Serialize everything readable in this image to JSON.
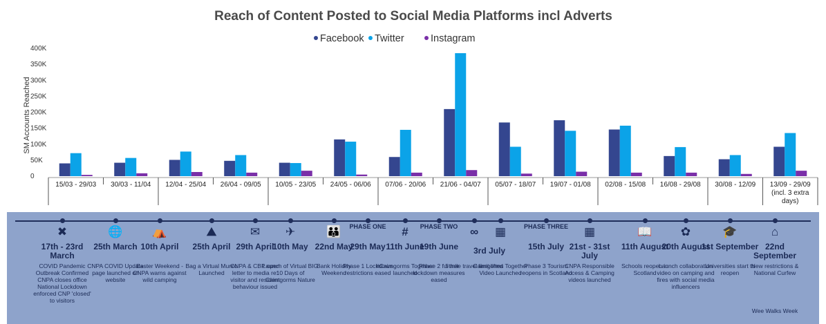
{
  "chart_data": {
    "type": "bar",
    "title": "Reach of Content Posted to Social Media Platforms incl Adverts",
    "ylabel": "SM Accounts Reached",
    "ylim": [
      0,
      400000
    ],
    "yticks": [
      0,
      50000,
      100000,
      150000,
      200000,
      250000,
      300000,
      350000,
      400000
    ],
    "ytick_labels": [
      "0",
      "50K",
      "100K",
      "150K",
      "200K",
      "250K",
      "300K",
      "350K",
      "400K"
    ],
    "legend_position": "top-center",
    "categories": [
      [
        "15/03 - 29/03"
      ],
      [
        "30/03 - 11/04"
      ],
      [
        "12/04 - 25/04"
      ],
      [
        "26/04 - 09/05"
      ],
      [
        "10/05 - 23/05"
      ],
      [
        "24/05 - 06/06"
      ],
      [
        "07/06 - 20/06"
      ],
      [
        "21/06 - 04/07"
      ],
      [
        "05/07 - 18/07"
      ],
      [
        "19/07 - 01/08"
      ],
      [
        "02/08 - 15/08"
      ],
      [
        "16/08 - 29/08"
      ],
      [
        "30/08 - 12/09"
      ],
      [
        "13/09 - 29/09",
        "(incl. 3 extra",
        "days)"
      ]
    ],
    "series": [
      {
        "name": "Facebook",
        "color": "#34468f",
        "values": [
          40000,
          42000,
          51000,
          48000,
          42000,
          115000,
          60000,
          210000,
          168000,
          175000,
          146000,
          63000,
          53000,
          92000
        ]
      },
      {
        "name": "Twitter",
        "color": "#0ba3e8",
        "values": [
          72000,
          57000,
          77000,
          66000,
          41000,
          108000,
          145000,
          385000,
          92000,
          142000,
          158000,
          91000,
          66000,
          135000
        ]
      },
      {
        "name": "Instagram",
        "color": "#7a2fa8",
        "values": [
          4000,
          9000,
          13000,
          11000,
          17000,
          5000,
          11000,
          19000,
          8000,
          14000,
          11000,
          11000,
          7000,
          17000
        ]
      }
    ]
  },
  "timeline": {
    "events": [
      {
        "icon": "✖",
        "icon_name": "closed-box-icon",
        "phase": "",
        "date": "17th - 23rd March",
        "desc": "COVID Pandemic Outbreak Confirmed CNPA closes office National Lockdown enforced CNP 'closed' to visitors",
        "desc2": ""
      },
      {
        "icon": "🌐",
        "icon_name": "globe-icon",
        "phase": "",
        "date": "25th March",
        "desc": "CNPA COVID Update page launched on website",
        "desc2": ""
      },
      {
        "icon": "⛺",
        "icon_name": "tent-icon",
        "phase": "",
        "date": "10th April",
        "desc": "Easter Weekend - CNPA warns against wild camping",
        "desc2": ""
      },
      {
        "icon": "⛰",
        "icon_name": "mountain-icon",
        "phase": "",
        "date": "25th April",
        "desc": "Bag a Virtual Munro Launched",
        "desc2": ""
      },
      {
        "icon": "✉",
        "icon_name": "letter-icon",
        "phase": "",
        "date": "29th April",
        "desc": "CNPA & CBP open letter to media re: visitor and resident behaviour issued",
        "desc2": ""
      },
      {
        "icon": "✈",
        "icon_name": "bird-icon",
        "phase": "",
        "date": "10th May",
        "desc": "Launch of Virtual BIG 10 Days of Cairngorms Nature",
        "desc2": ""
      },
      {
        "icon": "👪",
        "icon_name": "family-icon",
        "phase": "",
        "date": "22nd May",
        "desc": "Bank Holiday Weekend",
        "desc2": ""
      },
      {
        "icon": "",
        "icon_name": "",
        "phase": "PHASE ONE",
        "date": "29th May",
        "desc": "Phase 1 Lockdown restrictions eased",
        "desc2": ""
      },
      {
        "icon": "#",
        "icon_name": "hashtag-icon",
        "phase": "",
        "date": "11th June",
        "desc": "#Cairngorms Together launched",
        "desc2": ""
      },
      {
        "icon": "",
        "icon_name": "",
        "phase": "PHASE TWO",
        "date": "19th June",
        "desc": "Phase 2 further lockdown measures eased",
        "desc2": ""
      },
      {
        "icon": "∞",
        "icon_name": "bicycle-icon",
        "phase": "",
        "date": "",
        "desc": "5 mile travel limit lifted",
        "desc2": ""
      },
      {
        "icon": "▦",
        "icon_name": "film-icon",
        "phase": "",
        "date": "",
        "desc": "Cairngorms Together Video Launched",
        "desc2": ""
      },
      {
        "icon": "",
        "icon_name": "",
        "phase": "PHASE THREE",
        "date": "15th July",
        "desc": "Phase 3 Tourism reopens in Scotland",
        "desc2": ""
      },
      {
        "icon": "▦",
        "icon_name": "film-icon",
        "phase": "",
        "date": "21st - 31st July",
        "desc": "CNPA Responsible Access & Camping videos launched",
        "desc2": ""
      },
      {
        "icon": "📖",
        "icon_name": "book-icon",
        "phase": "",
        "date": "11th August",
        "desc": "Schools reopen in Scotland",
        "desc2": ""
      },
      {
        "icon": "✿",
        "icon_name": "campfire-icon",
        "phase": "",
        "date": "20th August",
        "desc": "Launch collaboration video on camping and fires with social media influencers",
        "desc2": ""
      },
      {
        "icon": "🎓",
        "icon_name": "graduation-cap-icon",
        "phase": "",
        "date": "1st September",
        "desc": "Universities start to reopen",
        "desc2": ""
      },
      {
        "icon": "⌂",
        "icon_name": "house-icon",
        "phase": "",
        "date": "22nd September",
        "desc": "New restrictions & National Curfew",
        "desc2": "Wee Walks Week"
      }
    ],
    "shared_date": "3rd July"
  }
}
